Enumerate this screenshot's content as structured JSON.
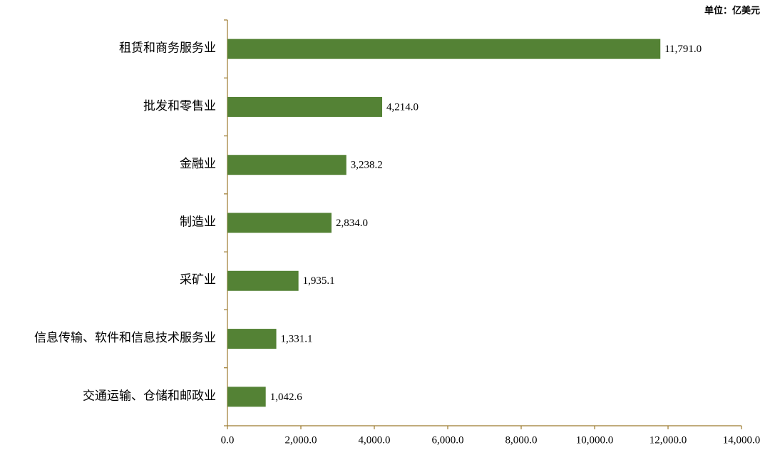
{
  "chart_data": {
    "type": "bar",
    "orientation": "horizontal",
    "unit_label": "单位：亿美元",
    "categories": [
      "租赁和商务服务业",
      "批发和零售业",
      "金融业",
      "制造业",
      "采矿业",
      "信息传输、软件和信息技术服务业",
      "交通运输、仓储和邮政业"
    ],
    "values": [
      11791.0,
      4214.0,
      3238.2,
      2834.0,
      1935.1,
      1331.1,
      1042.6
    ],
    "value_labels": [
      "11,791.0",
      "4,214.0",
      "3,238.2",
      "2,834.0",
      "1,935.1",
      "1,331.1",
      "1,042.6"
    ],
    "color": "#548235",
    "xlim": [
      0,
      14000
    ],
    "xticks": [
      {
        "value": 0,
        "label": "0.0"
      },
      {
        "value": 2000,
        "label": "2,000.0"
      },
      {
        "value": 4000,
        "label": "4,000.0"
      },
      {
        "value": 6000,
        "label": "6,000.0"
      },
      {
        "value": 8000,
        "label": "8,000.0"
      },
      {
        "value": 10000,
        "label": "10,000.0"
      },
      {
        "value": 12000,
        "label": "12,000.0"
      },
      {
        "value": 14000,
        "label": "14,000.0"
      }
    ],
    "grid": false
  }
}
